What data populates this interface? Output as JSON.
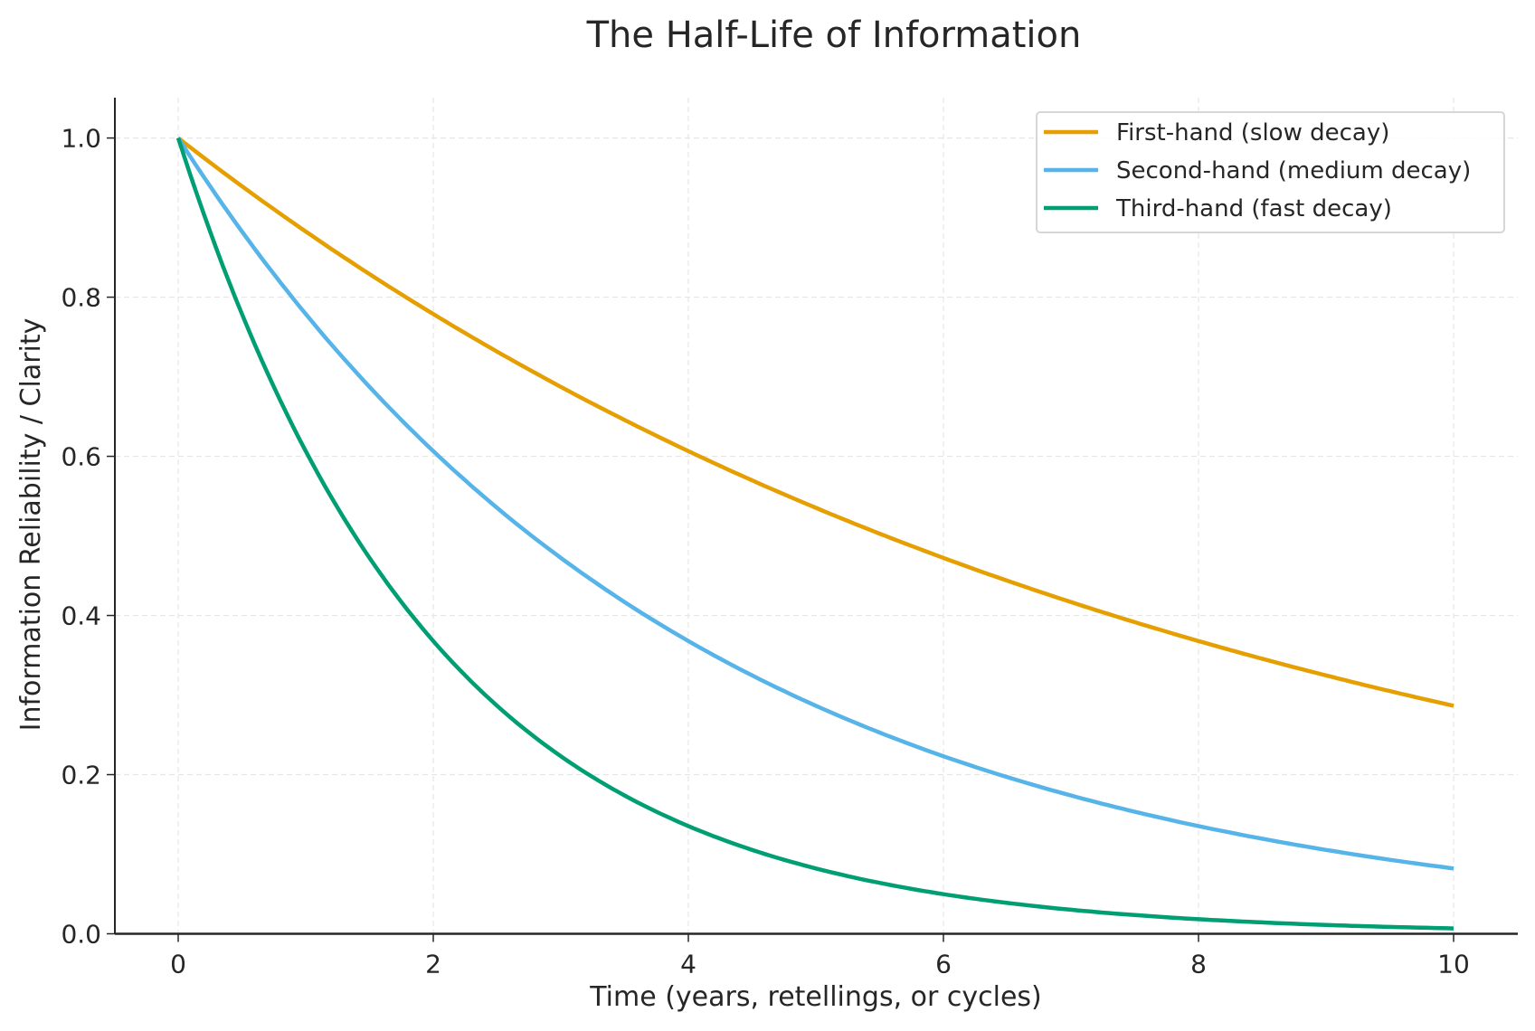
{
  "chart_data": {
    "type": "line",
    "title": "The Half-Life of Information",
    "xlabel": "Time (years, retellings, or cycles)",
    "ylabel": "Information Reliability / Clarity",
    "xlim": [
      -0.5,
      10.5
    ],
    "ylim": [
      0.0,
      1.05
    ],
    "xticks": [
      "0",
      "2",
      "4",
      "6",
      "8",
      "10"
    ],
    "yticks": [
      "0.0",
      "0.2",
      "0.4",
      "0.6",
      "0.8",
      "1.0"
    ],
    "grid": true,
    "legend_position": "top-right",
    "x_range": [
      0,
      10
    ],
    "series": [
      {
        "name": "First-hand (slow decay)",
        "color": "#E69F00",
        "function": "exp(-0.125 t)",
        "values_at_0_2_4_6_8_10": [
          1.0,
          0.779,
          0.607,
          0.472,
          0.368,
          0.287
        ]
      },
      {
        "name": "Second-hand (medium decay)",
        "color": "#56B4E9",
        "function": "exp(-0.25 t)",
        "values_at_0_2_4_6_8_10": [
          1.0,
          0.607,
          0.368,
          0.223,
          0.135,
          0.082
        ]
      },
      {
        "name": "Third-hand (fast decay)",
        "color": "#009E73",
        "function": "exp(-0.5 t)",
        "values_at_0_2_4_6_8_10": [
          1.0,
          0.368,
          0.135,
          0.05,
          0.018,
          0.007
        ]
      }
    ]
  }
}
